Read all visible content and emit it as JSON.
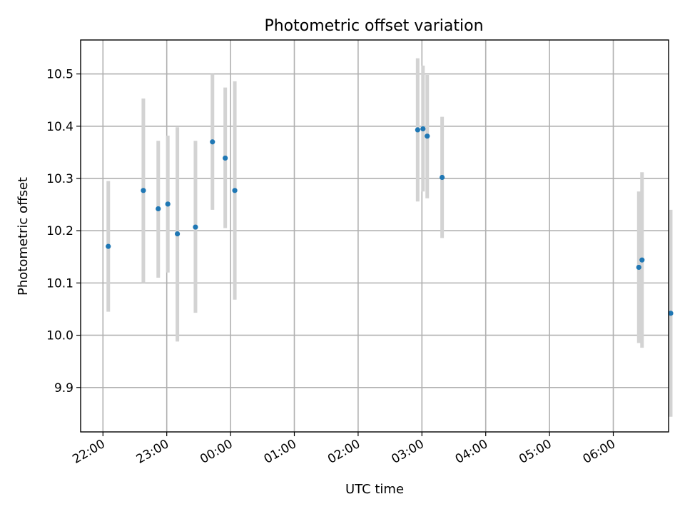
{
  "chart_data": {
    "type": "scatter",
    "title": "Photometric offset variation",
    "xlabel": "UTC time",
    "ylabel": "Photometric offset",
    "grid": true,
    "x_tick_labels": [
      "22:00",
      "23:00",
      "00:00",
      "01:00",
      "02:00",
      "03:00",
      "04:00",
      "05:00",
      "06:00"
    ],
    "y_tick_labels": [
      "9.9",
      "10.0",
      "10.1",
      "10.2",
      "10.3",
      "10.4",
      "10.5"
    ],
    "xlim": [
      "21:39",
      "06:52"
    ],
    "ylim": [
      9.815,
      10.565
    ],
    "colors": {
      "point": "#1f77b4",
      "errorbar": "#d3d3d3"
    },
    "series": [
      {
        "points": [
          {
            "x": "22:05",
            "y": 10.17,
            "y_low": 10.045,
            "y_high": 10.295
          },
          {
            "x": "22:38",
            "y": 10.277,
            "y_low": 10.1,
            "y_high": 10.453
          },
          {
            "x": "22:52",
            "y": 10.242,
            "y_low": 10.11,
            "y_high": 10.372
          },
          {
            "x": "23:01",
            "y": 10.251,
            "y_low": 10.12,
            "y_high": 10.382
          },
          {
            "x": "23:10",
            "y": 10.194,
            "y_low": 9.988,
            "y_high": 10.398
          },
          {
            "x": "23:27",
            "y": 10.207,
            "y_low": 10.043,
            "y_high": 10.372
          },
          {
            "x": "23:43",
            "y": 10.37,
            "y_low": 10.24,
            "y_high": 10.5
          },
          {
            "x": "23:55",
            "y": 10.339,
            "y_low": 10.205,
            "y_high": 10.474
          },
          {
            "x": "00:04",
            "y": 10.277,
            "y_low": 10.068,
            "y_high": 10.486
          },
          {
            "x": "02:56",
            "y": 10.393,
            "y_low": 10.256,
            "y_high": 10.53
          },
          {
            "x": "03:01",
            "y": 10.395,
            "y_low": 10.275,
            "y_high": 10.516
          },
          {
            "x": "03:05",
            "y": 10.381,
            "y_low": 10.262,
            "y_high": 10.498
          },
          {
            "x": "03:19",
            "y": 10.302,
            "y_low": 10.186,
            "y_high": 10.418
          },
          {
            "x": "06:24",
            "y": 10.13,
            "y_low": 9.985,
            "y_high": 10.275
          },
          {
            "x": "06:27",
            "y": 10.144,
            "y_low": 9.976,
            "y_high": 10.312
          },
          {
            "x": "06:54",
            "y": 10.042,
            "y_low": 9.844,
            "y_high": 10.24
          }
        ]
      }
    ]
  }
}
